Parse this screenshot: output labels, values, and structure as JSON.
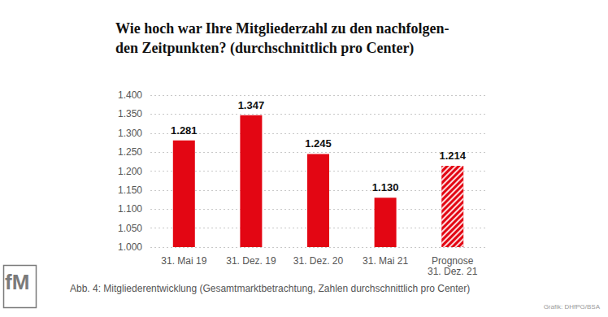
{
  "chart_data": {
    "type": "bar",
    "title": "Wie hoch war Ihre Mitgliederzahl zu den nachfolgen-\nden Zeitpunkten? (durchschnittlich pro Center)",
    "categories": [
      "31. Mai 19",
      "31. Dez. 19",
      "31. Dez. 20",
      "31. Mai 21",
      "Prognose\n31. Dez. 21"
    ],
    "values": [
      1281,
      1347,
      1245,
      1130,
      1214
    ],
    "value_labels": [
      "1.281",
      "1.347",
      "1.245",
      "1.130",
      "1.214"
    ],
    "color": "#e30613",
    "ylim": [
      1000,
      1400
    ],
    "yticks": [
      {
        "value": 1000,
        "label": "1.000"
      },
      {
        "value": 1050,
        "label": "1.050"
      },
      {
        "value": 1100,
        "label": "1.100"
      },
      {
        "value": 1150,
        "label": "1.150"
      },
      {
        "value": 1200,
        "label": "1.200"
      },
      {
        "value": 1250,
        "label": "1.250"
      },
      {
        "value": 1300,
        "label": "1.300"
      },
      {
        "value": 1350,
        "label": "1.350"
      },
      {
        "value": 1400,
        "label": "1.400"
      }
    ],
    "grid": true,
    "data_labels": true,
    "annotations": [
      "Abb. 4: Mitgliederentwicklung (Gesamtmarktbetrachtung, Zahlen durchschnittlich pro Center)",
      "Grafik: DHfPG/BSA",
      "fM"
    ]
  }
}
